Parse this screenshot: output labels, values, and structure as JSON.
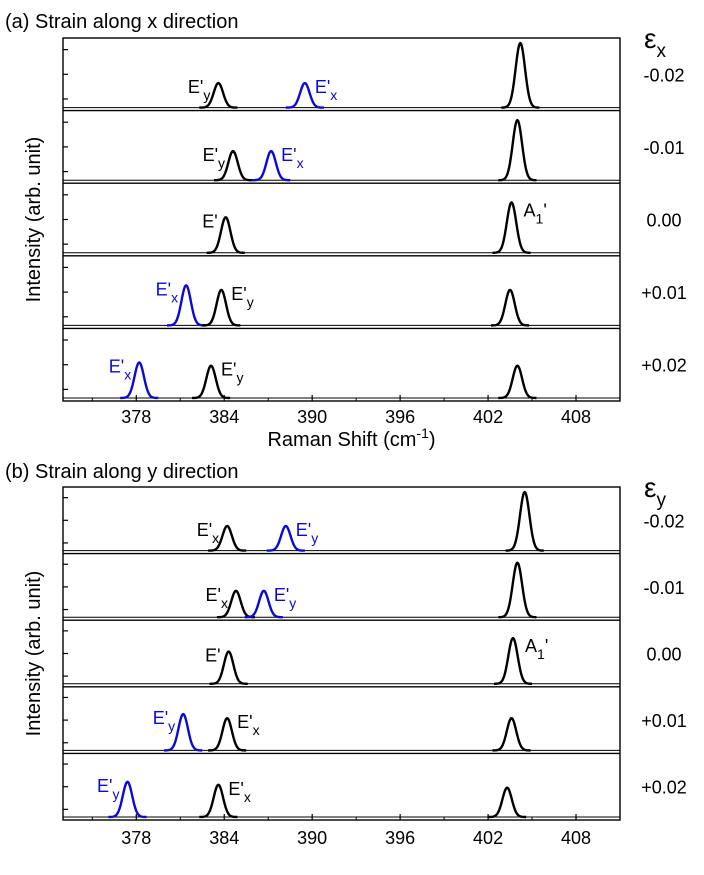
{
  "colors": {
    "axes": "#000000",
    "peak_black": "#000000",
    "peak_blue": "#0a0ad8"
  },
  "chart_data": [
    {
      "type": "line",
      "title": "(a) Strain along x direction",
      "ylabel": "Intensity (arb. unit)",
      "xlabel": "Raman Shift (cm",
      "xlabel_sup": "-1",
      "xlabel_tail": ")",
      "xlim": [
        373,
        411
      ],
      "xticks": [
        378,
        384,
        390,
        396,
        402,
        408
      ],
      "xtick_labels": [
        "378",
        "384",
        "390",
        "396",
        "402",
        "408"
      ],
      "show_tick_labels": true,
      "strain_symbol": "ε",
      "strain_sub": "x",
      "panels": [
        {
          "strain": "-0.02",
          "peaks": [
            {
              "center": 383.6,
              "height": 0.38,
              "color": "black",
              "label": "E'",
              "label_sub": "y"
            },
            {
              "center": 389.5,
              "height": 0.38,
              "color": "blue",
              "label": "E'",
              "label_sub": "x"
            },
            {
              "center": 404.2,
              "height": 1.0,
              "color": "black",
              "label": "",
              "label_sub": ""
            }
          ]
        },
        {
          "strain": "-0.01",
          "peaks": [
            {
              "center": 384.6,
              "height": 0.45,
              "color": "black",
              "label": "E'",
              "label_sub": "y"
            },
            {
              "center": 387.2,
              "height": 0.45,
              "color": "blue",
              "label": "E'",
              "label_sub": "x"
            },
            {
              "center": 404.0,
              "height": 0.93,
              "color": "black",
              "label": "",
              "label_sub": ""
            }
          ]
        },
        {
          "strain": "0.00",
          "peaks": [
            {
              "center": 384.1,
              "height": 0.55,
              "color": "black",
              "label": "E'",
              "label_sub": ""
            },
            {
              "center": 403.6,
              "height": 0.78,
              "color": "black",
              "label": "A",
              "label_sub": "1",
              "label_tail": "'"
            }
          ]
        },
        {
          "strain": "+0.01",
          "peaks": [
            {
              "center": 381.4,
              "height": 0.62,
              "color": "blue",
              "label": "E'",
              "label_sub": "x"
            },
            {
              "center": 383.8,
              "height": 0.55,
              "color": "black",
              "label": "E'",
              "label_sub": "y"
            },
            {
              "center": 403.5,
              "height": 0.55,
              "color": "black",
              "label": "",
              "label_sub": ""
            }
          ]
        },
        {
          "strain": "+0.02",
          "peaks": [
            {
              "center": 378.2,
              "height": 0.55,
              "color": "blue",
              "label": "E'",
              "label_sub": "x"
            },
            {
              "center": 383.1,
              "height": 0.5,
              "color": "black",
              "label": "E'",
              "label_sub": "y"
            },
            {
              "center": 404.0,
              "height": 0.5,
              "color": "black",
              "label": "",
              "label_sub": ""
            }
          ]
        }
      ]
    },
    {
      "type": "line",
      "title": "(b) Strain along y direction",
      "ylabel": "Intensity (arb. unit)",
      "xlabel": "",
      "xlabel_sup": "",
      "xlabel_tail": "",
      "xlim": [
        373,
        411
      ],
      "xticks": [
        378,
        384,
        390,
        396,
        402,
        408
      ],
      "xtick_labels": [
        "378",
        "384",
        "390",
        "396",
        "402",
        "408"
      ],
      "show_tick_labels": true,
      "strain_symbol": "ε",
      "strain_sub": "y",
      "panels": [
        {
          "strain": "-0.02",
          "peaks": [
            {
              "center": 384.2,
              "height": 0.42,
              "color": "black",
              "label": "E'",
              "label_sub": "x"
            },
            {
              "center": 388.2,
              "height": 0.42,
              "color": "blue",
              "label": "E'",
              "label_sub": "y"
            },
            {
              "center": 404.5,
              "height": 1.0,
              "color": "black",
              "label": "",
              "label_sub": ""
            }
          ]
        },
        {
          "strain": "-0.01",
          "peaks": [
            {
              "center": 384.8,
              "height": 0.45,
              "color": "black",
              "label": "E'",
              "label_sub": "x"
            },
            {
              "center": 386.7,
              "height": 0.45,
              "color": "blue",
              "label": "E'",
              "label_sub": "y"
            },
            {
              "center": 404.0,
              "height": 0.93,
              "color": "black",
              "label": "",
              "label_sub": ""
            }
          ]
        },
        {
          "strain": "0.00",
          "peaks": [
            {
              "center": 384.3,
              "height": 0.55,
              "color": "black",
              "label": "E'",
              "label_sub": ""
            },
            {
              "center": 403.7,
              "height": 0.78,
              "color": "black",
              "label": "A",
              "label_sub": "1",
              "label_tail": "'"
            }
          ]
        },
        {
          "strain": "+0.01",
          "peaks": [
            {
              "center": 381.2,
              "height": 0.62,
              "color": "blue",
              "label": "E'",
              "label_sub": "y"
            },
            {
              "center": 384.2,
              "height": 0.55,
              "color": "black",
              "label": "E'",
              "label_sub": "x"
            },
            {
              "center": 403.6,
              "height": 0.55,
              "color": "black",
              "label": "",
              "label_sub": ""
            }
          ]
        },
        {
          "strain": "+0.02",
          "peaks": [
            {
              "center": 377.4,
              "height": 0.6,
              "color": "blue",
              "label": "E'",
              "label_sub": "y"
            },
            {
              "center": 383.6,
              "height": 0.55,
              "color": "black",
              "label": "E'",
              "label_sub": "x"
            },
            {
              "center": 403.3,
              "height": 0.5,
              "color": "black",
              "label": "",
              "label_sub": ""
            }
          ]
        }
      ]
    }
  ]
}
